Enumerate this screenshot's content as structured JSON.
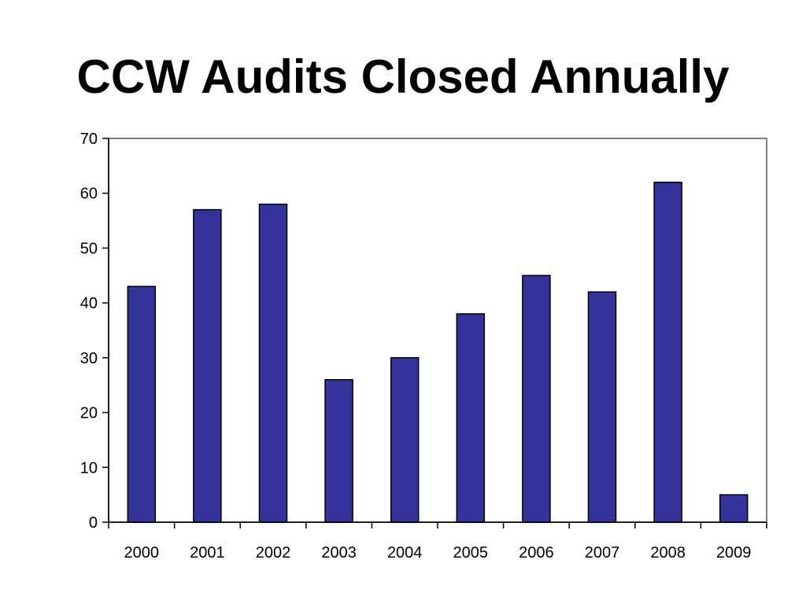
{
  "slide": {
    "title": "CCW Audits Closed Annually"
  },
  "chart_data": {
    "type": "bar",
    "categories": [
      "2000",
      "2001",
      "2002",
      "2003",
      "2004",
      "2005",
      "2006",
      "2007",
      "2008",
      "2009"
    ],
    "series": [
      {
        "values": [
          43,
          57,
          58,
          26,
          30,
          38,
          45,
          42,
          62,
          5
        ]
      }
    ],
    "ylim": [
      0,
      70
    ],
    "yticks": [
      0,
      10,
      20,
      30,
      40,
      50,
      60,
      70
    ],
    "grid": false,
    "legend": "none",
    "bar_color": "#333399",
    "bar_outline_color": "#000000",
    "plot_border_color": "#808080"
  }
}
